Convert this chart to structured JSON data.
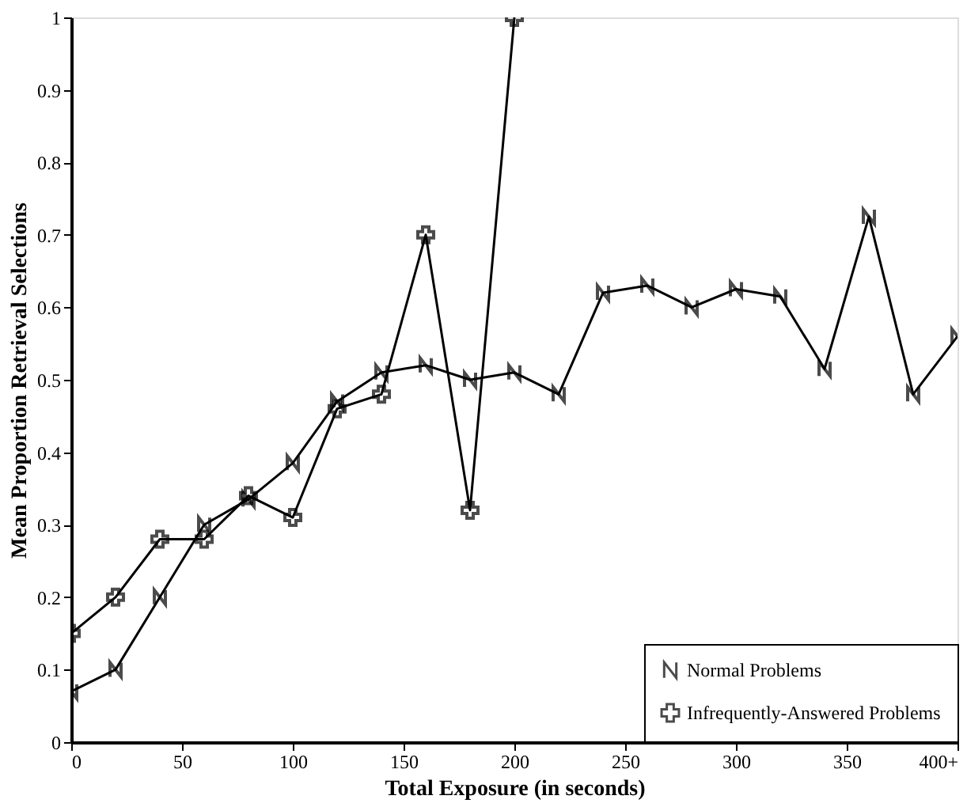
{
  "chart_data": {
    "type": "line",
    "xlabel": "Total Exposure (in seconds)",
    "ylabel": "Mean Proportion Retrieval Selections",
    "xlim": [
      0,
      400
    ],
    "xticks": [
      0,
      50,
      100,
      150,
      200,
      250,
      300,
      350,
      {
        "value": 400,
        "label": "400+"
      }
    ],
    "ylim": [
      0,
      1
    ],
    "yticks": [
      0,
      0.1,
      0.2,
      0.3,
      0.4,
      0.5,
      0.6,
      0.7,
      0.8,
      0.9,
      1
    ],
    "grid": false,
    "legend": "bottom right",
    "series": [
      {
        "name": "Normal Problems",
        "color": "#000000",
        "marker": "cross",
        "x": [
          0,
          20,
          40,
          60,
          80,
          100,
          120,
          140,
          160,
          180,
          200,
          220,
          240,
          260,
          280,
          300,
          320,
          340,
          360,
          380,
          400
        ],
        "values": [
          0.07,
          0.1,
          0.2,
          0.3,
          0.335,
          0.385,
          0.47,
          0.51,
          0.52,
          0.5,
          0.51,
          0.48,
          0.62,
          0.63,
          0.6,
          0.625,
          0.615,
          0.515,
          0.725,
          0.48,
          0.56
        ]
      },
      {
        "name": "Infrequently-Answered Problems",
        "color": "#000000",
        "marker": "cross",
        "x": [
          0,
          20,
          40,
          60,
          80,
          100,
          120,
          140,
          160,
          180,
          200
        ],
        "values": [
          0.15,
          0.2,
          0.28,
          0.28,
          0.34,
          0.31,
          0.46,
          0.48,
          0.7,
          0.32,
          1.0
        ]
      }
    ]
  }
}
